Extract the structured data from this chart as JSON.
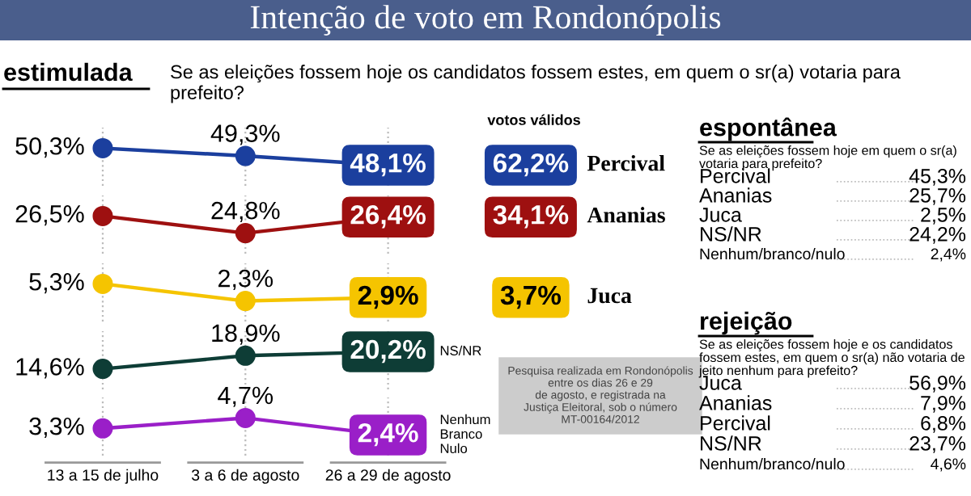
{
  "chart_data": [
    {
      "type": "line",
      "title": "Intenção de voto em Rondonópolis",
      "subtitle": "estimulada",
      "categories": [
        null,
        null,
        null
      ],
      "grid": "x",
      "marker": "circle",
      "tick_labels": false,
      "series": [
        {
          "name": "Percival",
          "color": "#1b3f9e",
          "values": [
            50.3,
            49.3,
            48.1
          ],
          "value_labels": [
            "50,3%",
            "49,3%",
            "48,1%"
          ]
        }
      ],
      "annotations": [
        "Se as eleições fossem hoje os candidatos fossem estes, em quem o sr(a) votaria para prefeito?",
        "votos válidos",
        "62,2%"
      ]
    },
    {
      "type": "line",
      "categories": [
        null,
        null,
        null
      ],
      "grid": "x",
      "marker": "circle",
      "tick_labels": false,
      "series": [
        {
          "name": "Ananias",
          "color": "#9e1010",
          "values": [
            26.5,
            24.8,
            26.4
          ],
          "value_labels": [
            "26,5%",
            "24,8%",
            "26,4%"
          ]
        }
      ],
      "annotations": [
        "34,1%"
      ]
    },
    {
      "type": "line",
      "categories": [
        null,
        null,
        null
      ],
      "grid": "x",
      "marker": "circle",
      "tick_labels": false,
      "series": [
        {
          "name": "Juca",
          "color": "#f5c400",
          "values": [
            5.3,
            2.3,
            2.9
          ],
          "value_labels": [
            "5,3%",
            "2,3%",
            "2,9%"
          ]
        }
      ],
      "annotations": [
        "3,7%"
      ]
    },
    {
      "type": "line",
      "categories": [
        null,
        null,
        null
      ],
      "grid": "x",
      "marker": "circle",
      "tick_labels": false,
      "series": [
        {
          "name": "NS/NR",
          "color": "#0e3d36",
          "values": [
            14.6,
            18.9,
            20.2
          ],
          "value_labels": [
            "14,6%",
            "18,9%",
            "20,2%"
          ]
        }
      ]
    },
    {
      "type": "line",
      "categories": [
        "13 a 15 de julho",
        "3 a 6 de agosto",
        "26 a 29 de agosto"
      ],
      "grid": "x",
      "marker": "circle",
      "tick_labels": "x",
      "series": [
        {
          "name": "Nenhum\nBranco\nNulo",
          "color": "#9a1fc8",
          "values": [
            3.3,
            4.7,
            2.4
          ],
          "value_labels": [
            "3,3%",
            "4,7%",
            "2,4%"
          ]
        }
      ],
      "annotations": [
        "Pesquisa realizada em Rondonópolis\nentre os dias 26 e 29\nde agosto, e registrada na\nJustiça Eleitoral, sob o número\nMT-00164/2012"
      ]
    },
    {
      "type": "other",
      "title": "espontânea",
      "subtitle": "Se as eleições fossem hoje em quem o sr(a)\nvotaria para prefeito?",
      "categories": [
        "Percival",
        "Ananias",
        "Juca",
        "NS/NR",
        "Nenhum/branco/nulo"
      ],
      "value_labels": [
        "45,3%",
        "25,7%",
        "2,5%",
        "24,2%",
        "2,4%"
      ]
    },
    {
      "type": "other",
      "title": "rejeição",
      "subtitle": "Se as eleições fossem hoje e os candidatos\nfossem estes, em quem o sr(a) não votaria de\njeito nenhum para prefeito?",
      "categories": [
        "Juca",
        "Ananias",
        "Percival",
        "NS/NR",
        "Nenhum/branco/nulo"
      ],
      "value_labels": [
        "56,9%",
        "7,9%",
        "6,8%",
        "23,7%",
        "4,6%"
      ]
    }
  ]
}
